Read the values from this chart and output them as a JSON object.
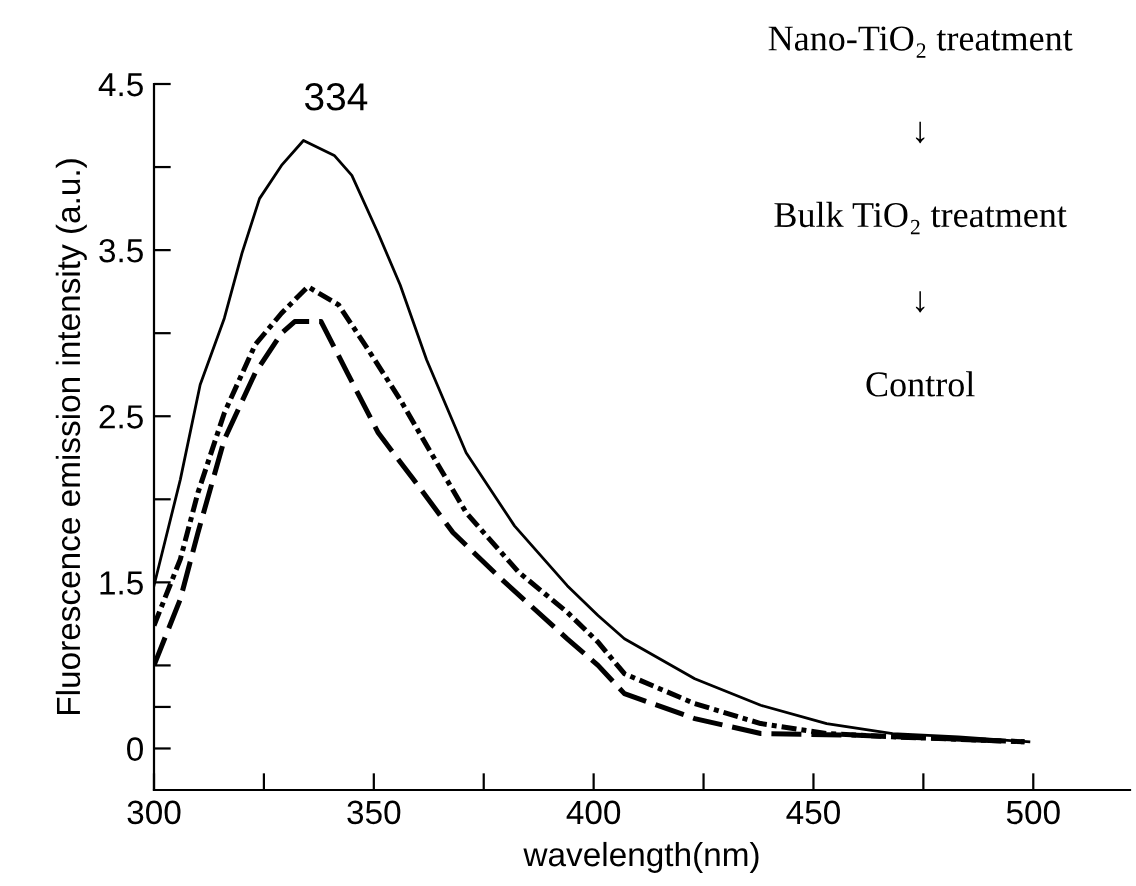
{
  "chart_data": {
    "type": "line",
    "xlabel": "wavelength(nm)",
    "ylabel": "Fluorescence emission intensity (a.u.)",
    "xlim": [
      300,
      522
    ],
    "xticks": [
      300,
      {
        "value": 325,
        "label": null
      },
      350,
      {
        "value": 375,
        "label": null
      },
      400,
      {
        "value": 425,
        "label": null
      },
      450,
      {
        "value": 475,
        "label": null
      },
      500
    ],
    "ylim": [
      0.25,
      4.5
    ],
    "yticks": [
      {
        "value": 0.5,
        "label": "0"
      },
      {
        "value": 0.75,
        "label": null
      },
      {
        "value": 1.0,
        "label": null
      },
      1.5,
      {
        "value": 2.0,
        "label": null
      },
      2.5,
      {
        "value": 3.0,
        "label": null
      },
      3.5,
      {
        "value": 4.0,
        "label": null
      },
      4.5
    ],
    "grid": false,
    "legend": false,
    "series": [
      {
        "color": "#000000",
        "line_style": "solid",
        "x": [
          300,
          306,
          310.5,
          316,
          320,
          324,
          329,
          334,
          341,
          345,
          351,
          356,
          362,
          371,
          382,
          394,
          401,
          407,
          423,
          438,
          453,
          468,
          483,
          499
        ],
        "values": [
          1.48,
          2.12,
          2.69,
          3.09,
          3.48,
          3.81,
          4.01,
          4.16,
          4.07,
          3.95,
          3.6,
          3.29,
          2.84,
          2.28,
          1.84,
          1.48,
          1.3,
          1.16,
          0.92,
          0.76,
          0.65,
          0.59,
          0.57,
          0.54
        ]
      },
      {
        "color": "#000000",
        "line_style": "dotted",
        "x": [
          300,
          306,
          310,
          316,
          323,
          329,
          335,
          342,
          348,
          356,
          363,
          371,
          383,
          394,
          401,
          407,
          423,
          438,
          453,
          468,
          498
        ],
        "values": [
          1.24,
          1.64,
          2.04,
          2.52,
          2.93,
          3.12,
          3.28,
          3.17,
          2.93,
          2.6,
          2.28,
          1.92,
          1.56,
          1.32,
          1.14,
          0.95,
          0.77,
          0.65,
          0.59,
          0.57,
          0.54
        ]
      },
      {
        "color": "#000000",
        "line_style": "dashed",
        "x": [
          300,
          306,
          310,
          316,
          323,
          329,
          332,
          338,
          344,
          351,
          359,
          368,
          379,
          394,
          401,
          407,
          423,
          438,
          460,
          498
        ],
        "values": [
          1.0,
          1.4,
          1.8,
          2.36,
          2.76,
          3.0,
          3.07,
          3.07,
          2.76,
          2.4,
          2.12,
          1.8,
          1.52,
          1.16,
          1.0,
          0.83,
          0.68,
          0.59,
          0.58,
          0.54
        ]
      }
    ],
    "annotations": [
      {
        "text": "334",
        "x": 334,
        "y": 4.16
      },
      "Nano-TiO₂ treatment",
      "↓",
      "Bulk TiO₂ treatment",
      "↓",
      "Control"
    ]
  }
}
